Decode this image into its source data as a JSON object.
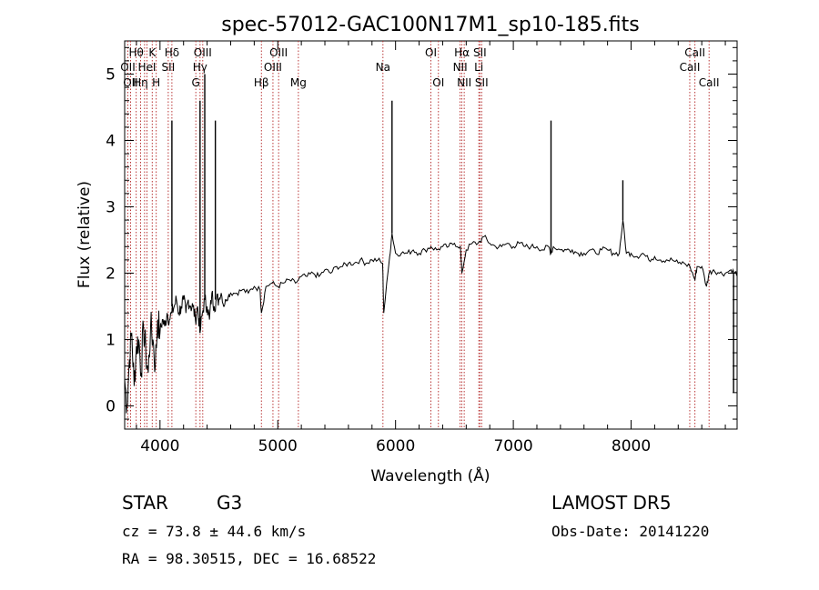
{
  "chart_data": {
    "type": "line",
    "title": "spec-57012-GAC100N17M1_sp10-185.fits",
    "xlabel": "Wavelength (Å)",
    "ylabel": "Flux (relative)",
    "xlim": [
      3700,
      8900
    ],
    "ylim": [
      -0.35,
      5.5
    ],
    "x_ticks": [
      4000,
      5000,
      6000,
      7000,
      8000
    ],
    "y_ticks": [
      0,
      1,
      2,
      3,
      4,
      5
    ],
    "grid": false,
    "series": [
      {
        "x": [
          3700,
          3720,
          3740,
          3760,
          3780,
          3800,
          3820,
          3840,
          3860,
          3880,
          3900,
          3920,
          3940,
          3960,
          3980,
          4000,
          4020,
          4040,
          4060,
          4080,
          4100,
          4120,
          4140,
          4160,
          4180,
          4200,
          4220,
          4240,
          4260,
          4280,
          4300,
          4320,
          4340,
          4360,
          4380,
          4400,
          4420,
          4440,
          4460,
          4480,
          4500,
          4520,
          4540,
          4560,
          4580,
          4600,
          4650,
          4700,
          4750,
          4800,
          4850,
          4861,
          4900,
          4950,
          5000,
          5050,
          5100,
          5150,
          5200,
          5250,
          5300,
          5350,
          5400,
          5450,
          5500,
          5550,
          5600,
          5650,
          5700,
          5750,
          5800,
          5850,
          5890,
          5900,
          5950,
          5970,
          6000,
          6050,
          6100,
          6150,
          6200,
          6250,
          6300,
          6350,
          6400,
          6450,
          6500,
          6550,
          6563,
          6600,
          6650,
          6700,
          6750,
          6800,
          6850,
          6900,
          6950,
          7000,
          7050,
          7100,
          7150,
          7200,
          7250,
          7300,
          7320,
          7340,
          7400,
          7450,
          7500,
          7550,
          7600,
          7650,
          7700,
          7750,
          7800,
          7850,
          7900,
          7930,
          7960,
          8000,
          8050,
          8100,
          8150,
          8200,
          8250,
          8300,
          8350,
          8400,
          8450,
          8500,
          8542,
          8560,
          8600,
          8640,
          8662,
          8700,
          8750,
          8800,
          8850,
          8880,
          8900
        ],
        "y": [
          0.4,
          0.0,
          0.7,
          1.1,
          0.3,
          0.9,
          1.0,
          0.5,
          1.2,
          0.8,
          0.5,
          1.2,
          1.0,
          0.6,
          1.3,
          1.1,
          1.3,
          1.2,
          1.4,
          1.3,
          1.4,
          1.5,
          1.6,
          1.4,
          1.5,
          1.6,
          1.4,
          1.6,
          1.5,
          1.5,
          1.3,
          1.5,
          1.1,
          1.4,
          1.6,
          1.5,
          1.3,
          1.7,
          1.5,
          1.6,
          1.6,
          1.7,
          1.5,
          1.6,
          1.65,
          1.7,
          1.7,
          1.75,
          1.7,
          1.8,
          1.75,
          1.4,
          1.8,
          1.85,
          1.8,
          1.85,
          1.9,
          1.85,
          1.95,
          1.95,
          2.0,
          1.95,
          2.05,
          2.0,
          2.1,
          2.1,
          2.15,
          2.15,
          2.2,
          2.15,
          2.2,
          2.2,
          2.15,
          1.4,
          2.25,
          2.6,
          2.3,
          2.3,
          2.3,
          2.35,
          2.3,
          2.35,
          2.4,
          2.35,
          2.4,
          2.4,
          2.45,
          2.4,
          2.0,
          2.35,
          2.45,
          2.45,
          2.55,
          2.45,
          2.4,
          2.4,
          2.45,
          2.4,
          2.45,
          2.4,
          2.4,
          2.4,
          2.35,
          2.4,
          2.3,
          2.4,
          2.35,
          2.35,
          2.35,
          2.3,
          2.3,
          2.35,
          2.3,
          2.35,
          2.35,
          2.3,
          2.3,
          2.8,
          2.3,
          2.3,
          2.25,
          2.3,
          2.2,
          2.25,
          2.2,
          2.2,
          2.2,
          2.15,
          2.15,
          2.1,
          1.9,
          2.1,
          2.1,
          1.8,
          2.0,
          2.05,
          2.0,
          2.0,
          2.05,
          2.0,
          2.0
        ]
      }
    ],
    "peaks": [
      {
        "x": 4101,
        "y": 4.3
      },
      {
        "x": 4340,
        "y": 4.6
      },
      {
        "x": 4380,
        "y": 5.0
      },
      {
        "x": 4470,
        "y": 4.3
      },
      {
        "x": 5970,
        "y": 4.6
      },
      {
        "x": 7320,
        "y": 4.3
      },
      {
        "x": 7930,
        "y": 3.4
      },
      {
        "x": 8870,
        "y": 0.2
      }
    ],
    "lines": [
      {
        "x": 3727,
        "label": "OII",
        "row": 1
      },
      {
        "x": 3750,
        "label": "OII",
        "row": 2
      },
      {
        "x": 3798,
        "label": "Hθ",
        "row": 0
      },
      {
        "x": 3835,
        "label": "Hη",
        "row": 2
      },
      {
        "x": 3869,
        "label": "",
        "row": -1
      },
      {
        "x": 3889,
        "label": "HeI",
        "row": 1
      },
      {
        "x": 3934,
        "label": "K",
        "row": 0
      },
      {
        "x": 3968,
        "label": "H",
        "row": 2
      },
      {
        "x": 4070,
        "label": "SII",
        "row": 1
      },
      {
        "x": 4101,
        "label": "Hδ",
        "row": 0
      },
      {
        "x": 4304,
        "label": "G",
        "row": 2
      },
      {
        "x": 4340,
        "label": "Hγ",
        "row": 1
      },
      {
        "x": 4363,
        "label": "OIII",
        "row": 0
      },
      {
        "x": 4861,
        "label": "Hβ",
        "row": 2
      },
      {
        "x": 4959,
        "label": "OIII",
        "row": 1
      },
      {
        "x": 5007,
        "label": "OIII",
        "row": 0
      },
      {
        "x": 5175,
        "label": "Mg",
        "row": 2
      },
      {
        "x": 5893,
        "label": "Na",
        "row": 1
      },
      {
        "x": 6300,
        "label": "OI",
        "row": 0
      },
      {
        "x": 6364,
        "label": "OI",
        "row": 2
      },
      {
        "x": 6548,
        "label": "NII",
        "row": 1
      },
      {
        "x": 6563,
        "label": "Hα",
        "row": 0
      },
      {
        "x": 6583,
        "label": "NII",
        "row": 2
      },
      {
        "x": 6707,
        "label": "Li",
        "row": 1
      },
      {
        "x": 6716,
        "label": "SII",
        "row": 0
      },
      {
        "x": 6731,
        "label": "SII",
        "row": 2
      },
      {
        "x": 8498,
        "label": "CaII",
        "row": 1
      },
      {
        "x": 8542,
        "label": "CaII",
        "row": 0
      },
      {
        "x": 8662,
        "label": "CaII",
        "row": 2
      }
    ]
  },
  "info": {
    "class": "STAR",
    "subclass": "G3",
    "survey": "LAMOST DR5",
    "cz": "cz = 73.8 ± 44.6 km/s",
    "obs_date": "Obs-Date: 20141220",
    "coords": "RA =  98.30515, DEC =  16.68522"
  }
}
